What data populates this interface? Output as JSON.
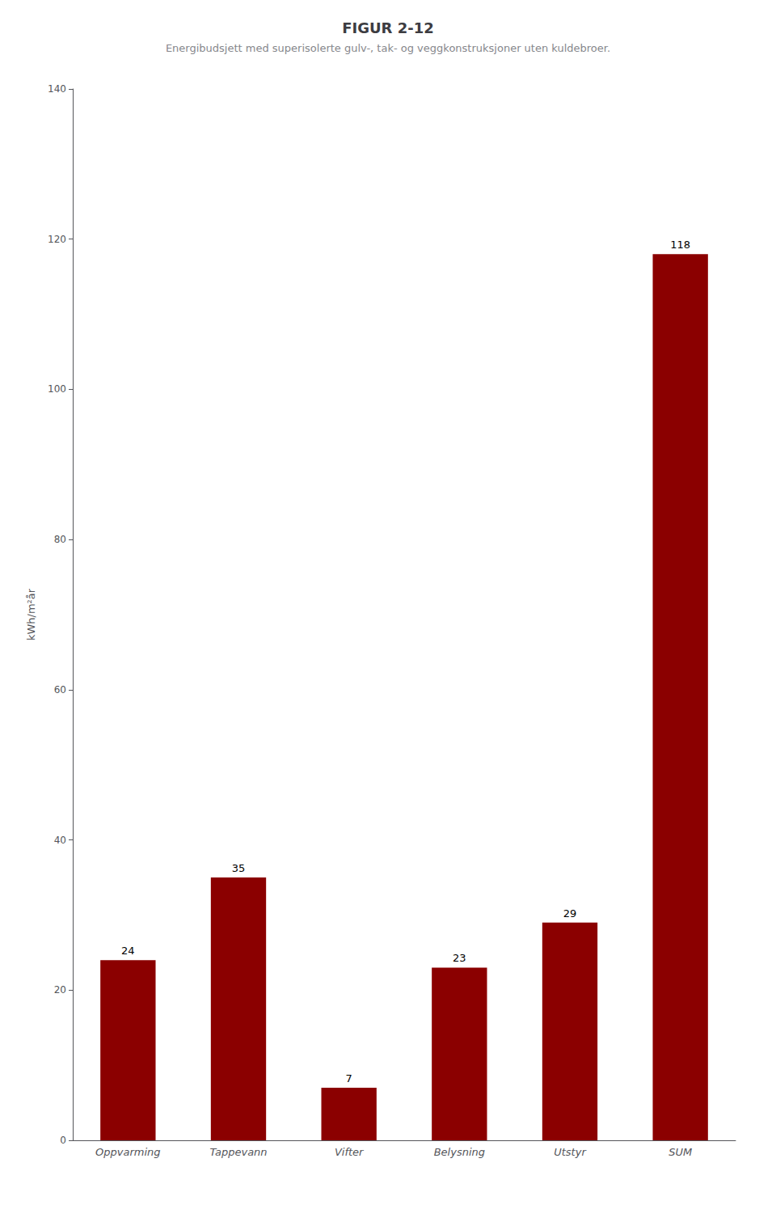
{
  "chart_data": {
    "type": "bar",
    "title": "FIGUR 2-12",
    "subtitle": "Energibudsjett med superisolerte gulv-, tak- og veggkonstruksjoner uten kuldebroer.",
    "categories": [
      "Oppvarming",
      "Tappevann",
      "Vifter",
      "Belysning",
      "Utstyr",
      "SUM"
    ],
    "values": [
      24,
      35,
      7,
      23,
      29,
      118
    ],
    "color": "#8B0000",
    "ylabel": "kWh/m²år",
    "ylim": [
      0,
      140
    ],
    "yticks": [
      0,
      20,
      40,
      60,
      80,
      100,
      120,
      140
    ],
    "data_labels": true,
    "grid": false
  }
}
